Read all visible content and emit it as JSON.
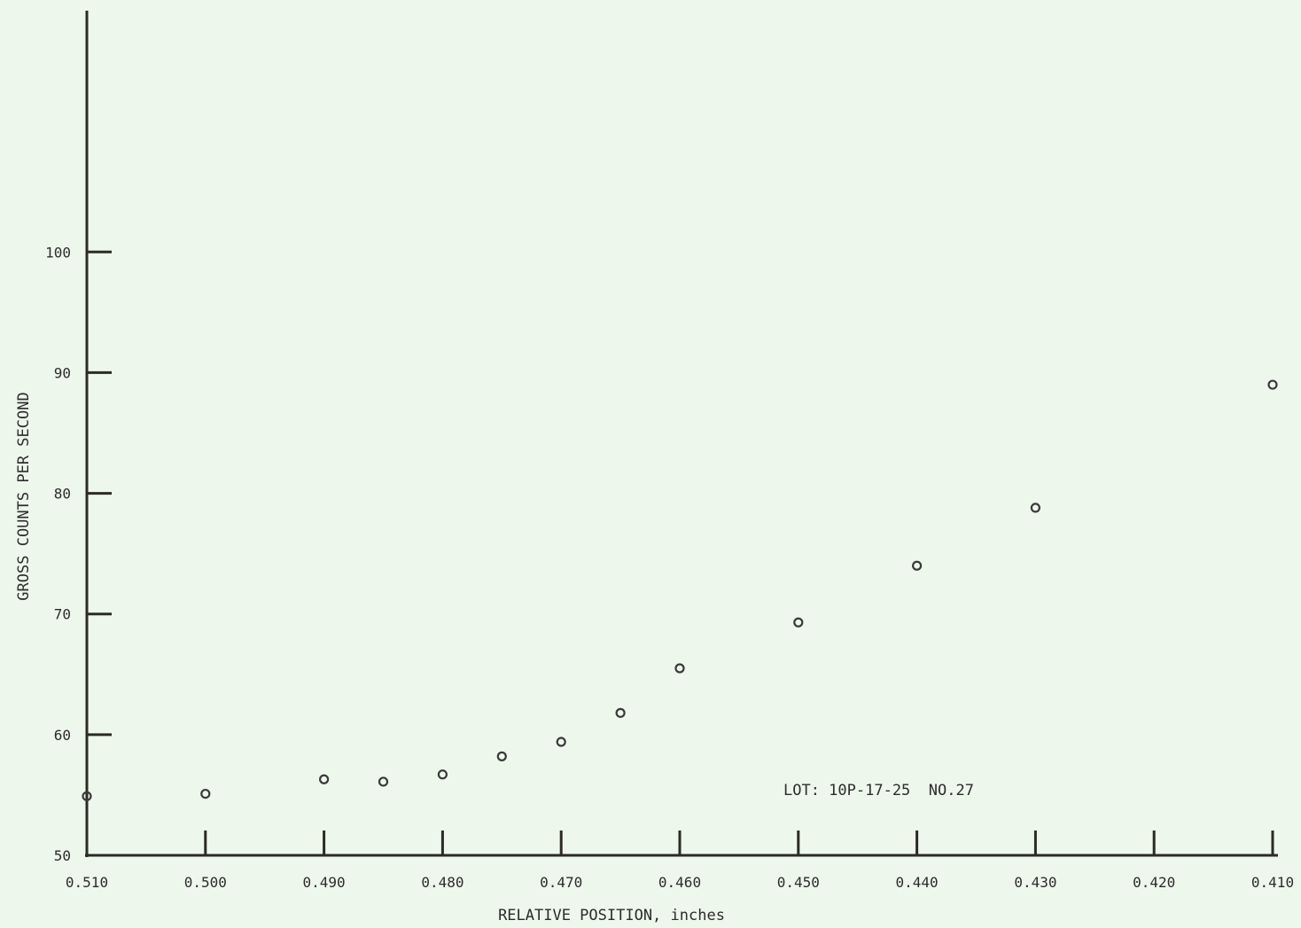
{
  "chart_data": {
    "type": "scatter",
    "title": "",
    "xlabel": "RELATIVE POSITION, inches",
    "ylabel": "GROSS COUNTS PER SECOND",
    "xlim": [
      0.51,
      0.41
    ],
    "ylim": [
      50,
      120
    ],
    "x_reversed": true,
    "grid": false,
    "xticks": [
      0.51,
      0.5,
      0.49,
      0.48,
      0.47,
      0.46,
      0.45,
      0.44,
      0.43,
      0.42,
      0.41
    ],
    "xtick_labels": [
      "0.510",
      "0.500",
      "0.490",
      "0.480",
      "0.470",
      "0.460",
      "0.450",
      "0.440",
      "0.430",
      "0.420",
      "0.410"
    ],
    "yticks": [
      50,
      60,
      70,
      80,
      90,
      100
    ],
    "ytick_labels": [
      "50",
      "60",
      "70",
      "80",
      "90",
      "100"
    ],
    "annotation": "LOT: 10P-17-25  NO.27",
    "series": [
      {
        "marker": "open-circle",
        "points": [
          {
            "x": 0.51,
            "y": 54.9
          },
          {
            "x": 0.5,
            "y": 55.1
          },
          {
            "x": 0.49,
            "y": 56.3
          },
          {
            "x": 0.485,
            "y": 56.1
          },
          {
            "x": 0.48,
            "y": 56.7
          },
          {
            "x": 0.475,
            "y": 58.2
          },
          {
            "x": 0.47,
            "y": 59.4
          },
          {
            "x": 0.465,
            "y": 61.8
          },
          {
            "x": 0.46,
            "y": 65.5
          },
          {
            "x": 0.45,
            "y": 69.3
          },
          {
            "x": 0.44,
            "y": 74.0
          },
          {
            "x": 0.43,
            "y": 78.8
          },
          {
            "x": 0.41,
            "y": 89.0
          }
        ]
      }
    ],
    "colors": {
      "background": "#eef7ec",
      "axis": "#2b2b23",
      "marker": "#3a3a3a",
      "text": "#2c2c2c"
    }
  }
}
